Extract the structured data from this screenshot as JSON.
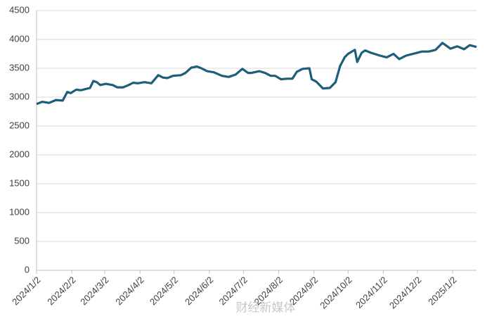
{
  "chart_data": {
    "type": "line",
    "watermark": "财经新媒体",
    "x": [
      "2024/1/2",
      "2024/1/7",
      "2024/1/13",
      "2024/1/19",
      "2024/1/25",
      "2024/1/29",
      "2024/2/1",
      "2024/2/6",
      "2024/2/10",
      "2024/2/18",
      "2024/2/21",
      "2024/2/24",
      "2024/2/27",
      "2024/3/3",
      "2024/3/9",
      "2024/3/13",
      "2024/3/18",
      "2024/3/23",
      "2024/3/27",
      "2024/3/31",
      "2024/4/6",
      "2024/4/12",
      "2024/4/18",
      "2024/4/22",
      "2024/4/26",
      "2024/5/1",
      "2024/5/8",
      "2024/5/12",
      "2024/5/17",
      "2024/5/22",
      "2024/5/26",
      "2024/5/31",
      "2024/6/6",
      "2024/6/13",
      "2024/6/19",
      "2024/6/25",
      "2024/7/1",
      "2024/7/6",
      "2024/7/9",
      "2024/7/16",
      "2024/7/21",
      "2024/7/26",
      "2024/7/30",
      "2024/8/4",
      "2024/8/9",
      "2024/8/14",
      "2024/8/18",
      "2024/8/23",
      "2024/8/29",
      "2024/8/31",
      "2024/9/4",
      "2024/9/10",
      "2024/9/16",
      "2024/9/21",
      "2024/9/25",
      "2024/9/29",
      "2024/10/2",
      "2024/10/8",
      "2024/10/10",
      "2024/10/14",
      "2024/10/17",
      "2024/10/22",
      "2024/10/30",
      "2024/11/5",
      "2024/11/11",
      "2024/11/16",
      "2024/11/22",
      "2024/11/30",
      "2024/12/6",
      "2024/12/12",
      "2024/12/18",
      "2024/12/24",
      "2024/12/31",
      "2025/1/6",
      "2025/1/12",
      "2025/1/17",
      "2025/1/23"
    ],
    "series": [
      {
        "color": "#1d5e79",
        "values": [
          2880,
          2920,
          2900,
          2950,
          2940,
          3090,
          3070,
          3130,
          3120,
          3160,
          3280,
          3260,
          3210,
          3230,
          3210,
          3170,
          3170,
          3210,
          3250,
          3240,
          3260,
          3240,
          3380,
          3340,
          3330,
          3370,
          3380,
          3420,
          3510,
          3530,
          3500,
          3450,
          3430,
          3370,
          3350,
          3390,
          3490,
          3420,
          3420,
          3450,
          3420,
          3370,
          3370,
          3310,
          3320,
          3320,
          3440,
          3490,
          3500,
          3310,
          3270,
          3150,
          3160,
          3260,
          3540,
          3690,
          3750,
          3820,
          3610,
          3770,
          3810,
          3770,
          3720,
          3690,
          3750,
          3660,
          3720,
          3760,
          3790,
          3790,
          3820,
          3940,
          3840,
          3880,
          3830,
          3900,
          3870
        ]
      }
    ],
    "xlim": [
      "2024/1/2",
      "2025/1/23"
    ],
    "xticks": [
      "2024/1/2",
      "2024/2/2",
      "2024/3/2",
      "2024/4/2",
      "2024/5/2",
      "2024/6/2",
      "2024/7/2",
      "2024/8/2",
      "2024/9/2",
      "2024/10/2",
      "2024/11/2",
      "2024/12/2",
      "2025/1/2"
    ],
    "ylim": [
      0,
      4500
    ],
    "yticks": [
      0,
      500,
      1000,
      1500,
      2000,
      2500,
      3000,
      3500,
      4000,
      4500
    ],
    "grid": true
  }
}
